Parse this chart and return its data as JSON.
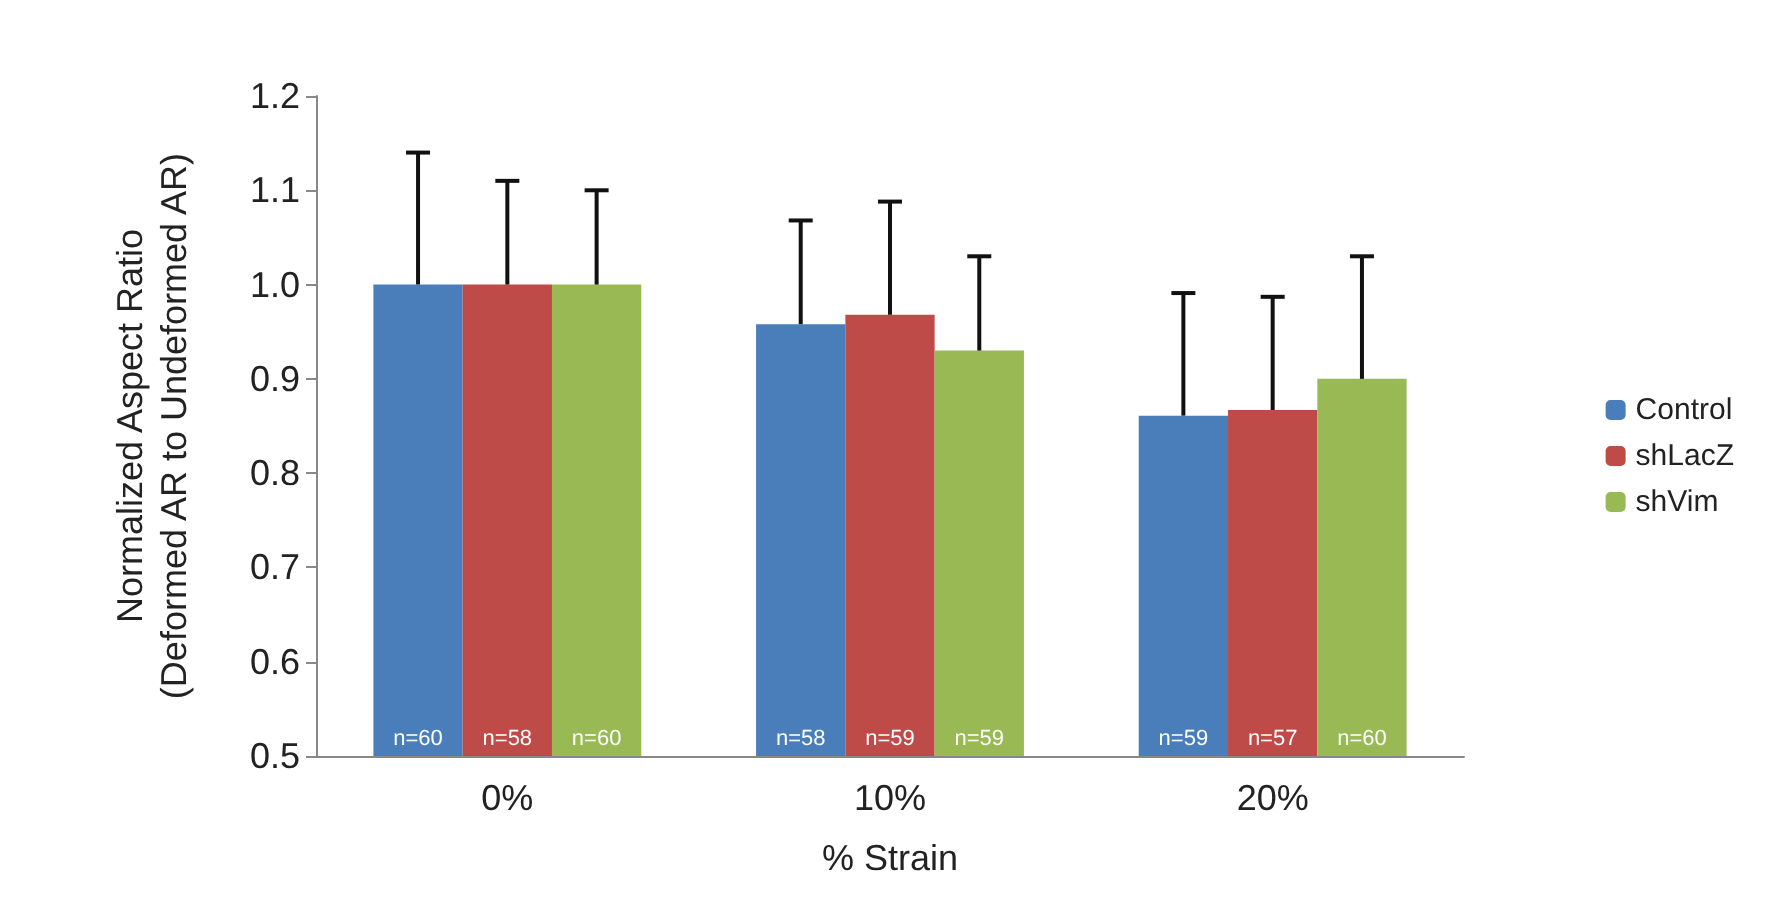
{
  "chart_data": {
    "type": "bar",
    "xlabel": "% Strain",
    "ylabel": "Normalized Aspect Ratio\n(Deformed AR to Undeformed AR)",
    "categories": [
      "0%",
      "10%",
      "20%"
    ],
    "series": [
      {
        "name": "Control",
        "color": "#4a7ebb",
        "values": [
          1.0,
          0.958,
          0.861
        ],
        "errors": [
          [
            1.0,
            1.14
          ],
          [
            0.958,
            1.068
          ],
          [
            0.861,
            0.991
          ]
        ]
      },
      {
        "name": "shLacZ",
        "color": "#be4b48",
        "values": [
          1.0,
          0.968,
          0.867
        ],
        "errors": [
          [
            1.0,
            1.11
          ],
          [
            0.968,
            1.088
          ],
          [
            0.867,
            0.987
          ]
        ]
      },
      {
        "name": "shVim",
        "color": "#98b954",
        "values": [
          1.0,
          0.93,
          0.9
        ],
        "errors": [
          [
            1.0,
            1.1
          ],
          [
            0.93,
            1.03
          ],
          [
            0.9,
            1.03
          ]
        ]
      }
    ],
    "ylim": [
      0.5,
      1.2
    ],
    "yticks": [
      0.5,
      0.6,
      0.7,
      0.8,
      0.9,
      {
        "value": 1,
        "label": "1.0"
      },
      1.1,
      1.2
    ],
    "grid": false,
    "legend": "right",
    "annotations": [
      {
        "text": "n=60",
        "x": "0%",
        "y": 0.5
      },
      {
        "text": "n=58",
        "x": "0%",
        "y": 0.5
      },
      {
        "text": "n=60",
        "x": "0%",
        "y": 0.5
      },
      {
        "text": "n=58",
        "x": "10%",
        "y": 0.5
      },
      {
        "text": "n=59",
        "x": "10%",
        "y": 0.5
      },
      {
        "text": "n=59",
        "x": "10%",
        "y": 0.5
      },
      {
        "text": "n=59",
        "x": "20%",
        "y": 0.5
      },
      {
        "text": "n=57",
        "x": "20%",
        "y": 0.5
      },
      {
        "text": "n=60",
        "x": "20%",
        "y": 0.5
      }
    ]
  }
}
